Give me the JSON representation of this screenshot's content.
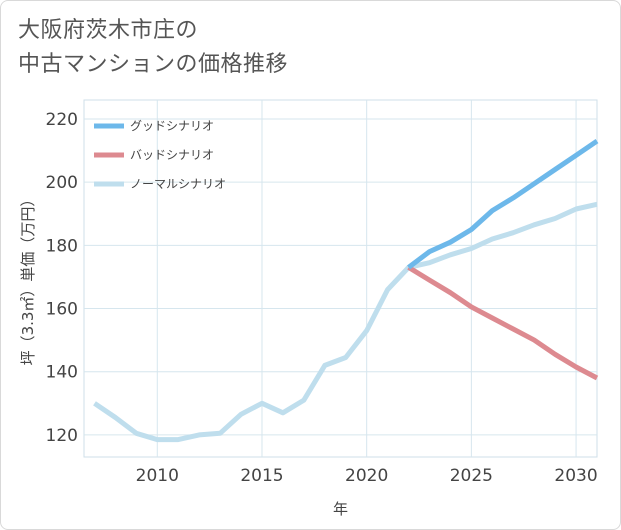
{
  "title_line1": "大阪府茨木市庄の",
  "title_line2": "中古マンションの価格推移",
  "chart_data": {
    "type": "line",
    "xlabel": "年",
    "ylabel": "坪（3.3㎡）単価（万円）",
    "xlim": [
      2006.5,
      2031
    ],
    "ylim": [
      113,
      226
    ],
    "xticks": [
      2010,
      2015,
      2020,
      2025,
      2030
    ],
    "yticks": [
      120,
      140,
      160,
      180,
      200,
      220
    ],
    "grid": true,
    "legend_position": "top-left",
    "series": [
      {
        "name": "グッドシナリオ",
        "color": "#6db8ea",
        "x": [
          2022,
          2023,
          2024,
          2025,
          2026,
          2027,
          2028,
          2029,
          2030,
          2031
        ],
        "y": [
          173,
          178,
          181,
          185,
          191,
          195,
          199.5,
          204,
          208.5,
          213
        ]
      },
      {
        "name": "バッドシナリオ",
        "color": "#dd8a90",
        "x": [
          2022,
          2023,
          2024,
          2025,
          2026,
          2027,
          2028,
          2029,
          2030,
          2031
        ],
        "y": [
          173,
          169,
          165,
          160.5,
          157,
          153.5,
          150,
          145.5,
          141.5,
          138
        ]
      },
      {
        "name": "ノーマルシナリオ",
        "color": "#bfdeed",
        "x": [
          2007,
          2008,
          2009,
          2010,
          2011,
          2012,
          2013,
          2014,
          2015,
          2016,
          2017,
          2018,
          2019,
          2020,
          2021,
          2022,
          2023,
          2024,
          2025,
          2026,
          2027,
          2028,
          2029,
          2030,
          2031
        ],
        "y": [
          130,
          125.5,
          120.5,
          118.5,
          118.5,
          120,
          120.5,
          126.5,
          130,
          127,
          131,
          142,
          144.5,
          153,
          166,
          173,
          174.5,
          177,
          179,
          182,
          184,
          186.5,
          188.5,
          191.5,
          193
        ]
      }
    ]
  }
}
